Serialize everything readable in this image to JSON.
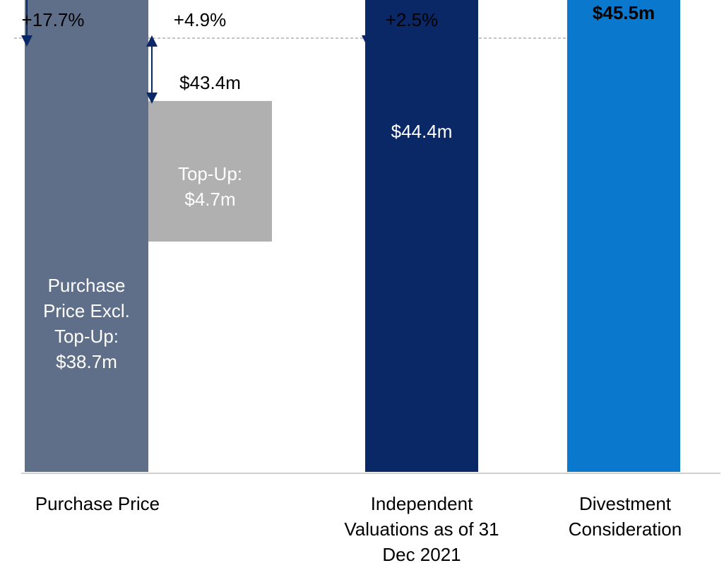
{
  "chart_data": {
    "type": "waterfall",
    "categories": [
      "Purchase Price",
      "Independent Valuations as of 31 Dec 2021",
      "Divestment Consideration"
    ],
    "ylim": [
      31,
      45.5
    ],
    "bars": [
      {
        "name": "Purchase Price Excl. Top-Up:",
        "value": 38.7,
        "value_label": "$38.7m",
        "color": "#5f6f8a",
        "change": {
          "value": 17.7,
          "label": "+17.7%"
        }
      },
      {
        "name": "Top-Up:",
        "value": 4.7,
        "value_label": "$4.7m",
        "color": "#b0b0b0",
        "total": 43.4,
        "total_label": "$43.4m",
        "change": {
          "value": 4.9,
          "label": "+4.9%"
        }
      },
      {
        "value": 44.4,
        "value_label": "$44.4m",
        "color": "#0a2866",
        "change": {
          "value": 2.5,
          "label": "+2.5%"
        }
      },
      {
        "value": 45.5,
        "value_label": "$45.5m",
        "color": "#0a78cc"
      }
    ]
  }
}
